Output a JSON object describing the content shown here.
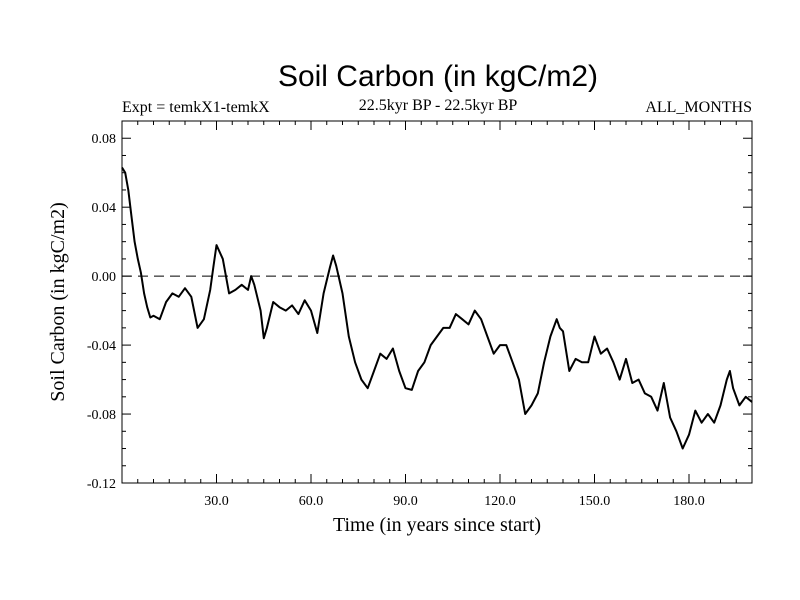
{
  "chart_data": {
    "type": "line",
    "title": "Soil Carbon (in kgC/m2)",
    "experiment": "Expt = temkX1-temkX",
    "period": "22.5kyr BP - 22.5kyr BP",
    "months": "ALL_MONTHS",
    "xlabel": "Time (in years since start)",
    "ylabel": "Soil Carbon (in kgC/m2)",
    "xlim": [
      0,
      200
    ],
    "ylim": [
      -0.12,
      0.09
    ],
    "x_ticks": [
      30,
      60,
      90,
      120,
      150,
      180
    ],
    "x_tick_labels": [
      "30.0",
      "60.0",
      "90.0",
      "120.0",
      "150.0",
      "180.0"
    ],
    "y_ticks": [
      0.08,
      0.04,
      0.0,
      -0.04,
      -0.08,
      -0.12
    ],
    "y_tick_labels": [
      "0.08",
      "0.04",
      "0.00",
      "-0.04",
      "-0.08",
      "-0.12"
    ],
    "reference_line": 0.0,
    "series": [
      {
        "name": "Soil Carbon",
        "x": [
          0,
          1,
          2,
          3,
          4,
          5,
          6,
          7,
          8,
          9,
          10,
          12,
          14,
          16,
          18,
          20,
          22,
          24,
          26,
          28,
          29,
          30,
          32,
          34,
          36,
          38,
          40,
          41,
          42,
          44,
          45,
          46,
          48,
          50,
          52,
          54,
          56,
          58,
          60,
          62,
          64,
          66,
          67,
          68,
          70,
          72,
          74,
          76,
          78,
          80,
          82,
          84,
          86,
          88,
          90,
          92,
          94,
          96,
          98,
          100,
          102,
          104,
          106,
          108,
          110,
          112,
          114,
          116,
          118,
          120,
          122,
          124,
          126,
          128,
          130,
          132,
          134,
          136,
          138,
          139,
          140,
          142,
          144,
          146,
          148,
          150,
          152,
          154,
          156,
          158,
          160,
          162,
          164,
          166,
          168,
          170,
          172,
          174,
          176,
          178,
          180,
          182,
          184,
          186,
          188,
          190,
          192,
          193,
          194,
          196,
          198,
          200
        ],
        "values": [
          0.063,
          0.06,
          0.05,
          0.035,
          0.02,
          0.01,
          0.002,
          -0.01,
          -0.018,
          -0.024,
          -0.023,
          -0.025,
          -0.015,
          -0.01,
          -0.012,
          -0.007,
          -0.012,
          -0.03,
          -0.025,
          -0.008,
          0.005,
          0.018,
          0.01,
          -0.01,
          -0.008,
          -0.005,
          -0.008,
          0.0,
          -0.005,
          -0.02,
          -0.036,
          -0.03,
          -0.015,
          -0.018,
          -0.02,
          -0.017,
          -0.022,
          -0.014,
          -0.02,
          -0.033,
          -0.01,
          0.005,
          0.012,
          0.006,
          -0.01,
          -0.035,
          -0.05,
          -0.06,
          -0.065,
          -0.055,
          -0.045,
          -0.048,
          -0.042,
          -0.055,
          -0.065,
          -0.066,
          -0.055,
          -0.05,
          -0.04,
          -0.035,
          -0.03,
          -0.03,
          -0.022,
          -0.025,
          -0.028,
          -0.02,
          -0.025,
          -0.035,
          -0.045,
          -0.04,
          -0.04,
          -0.05,
          -0.06,
          -0.08,
          -0.075,
          -0.068,
          -0.05,
          -0.035,
          -0.025,
          -0.03,
          -0.032,
          -0.055,
          -0.048,
          -0.05,
          -0.05,
          -0.035,
          -0.045,
          -0.042,
          -0.05,
          -0.06,
          -0.048,
          -0.062,
          -0.06,
          -0.068,
          -0.07,
          -0.078,
          -0.062,
          -0.082,
          -0.09,
          -0.1,
          -0.092,
          -0.078,
          -0.085,
          -0.08,
          -0.085,
          -0.075,
          -0.06,
          -0.055,
          -0.065,
          -0.075,
          -0.07,
          -0.073
        ]
      }
    ]
  }
}
